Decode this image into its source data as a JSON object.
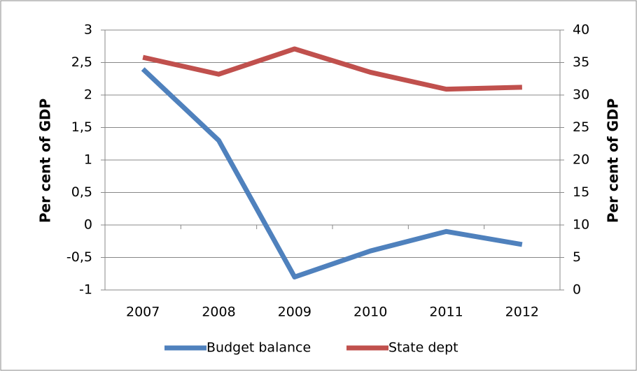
{
  "chart_data": {
    "type": "line",
    "categories": [
      "2007",
      "2008",
      "2009",
      "2010",
      "2011",
      "2012"
    ],
    "y_label": "Per cent of GDP",
    "y2_label": "Per cent of GDP",
    "series": [
      {
        "name": "Budget balance",
        "color": "#4f81bd",
        "values": [
          2.4,
          1.3,
          -0.8,
          -0.4,
          -0.1,
          -0.3
        ]
      },
      {
        "name": "State dept",
        "color": "#c0504d",
        "axis": "y2",
        "values": [
          35.8,
          33.2,
          37.1,
          33.5,
          30.9,
          31.2
        ]
      }
    ],
    "ylim": [
      -1,
      3
    ],
    "yticks": [
      -1,
      {
        "value": -0.5,
        "label": "-0,5"
      },
      0,
      {
        "value": 0.5,
        "label": "0,5"
      },
      1,
      {
        "value": 1.5,
        "label": "1,5"
      },
      2,
      {
        "value": 2.5,
        "label": "2,5"
      },
      3
    ],
    "y2lim": [
      0,
      40
    ],
    "y2ticks": [
      0,
      5,
      10,
      15,
      20,
      25,
      30,
      35,
      40
    ],
    "grid": true,
    "legend": "bottom"
  }
}
